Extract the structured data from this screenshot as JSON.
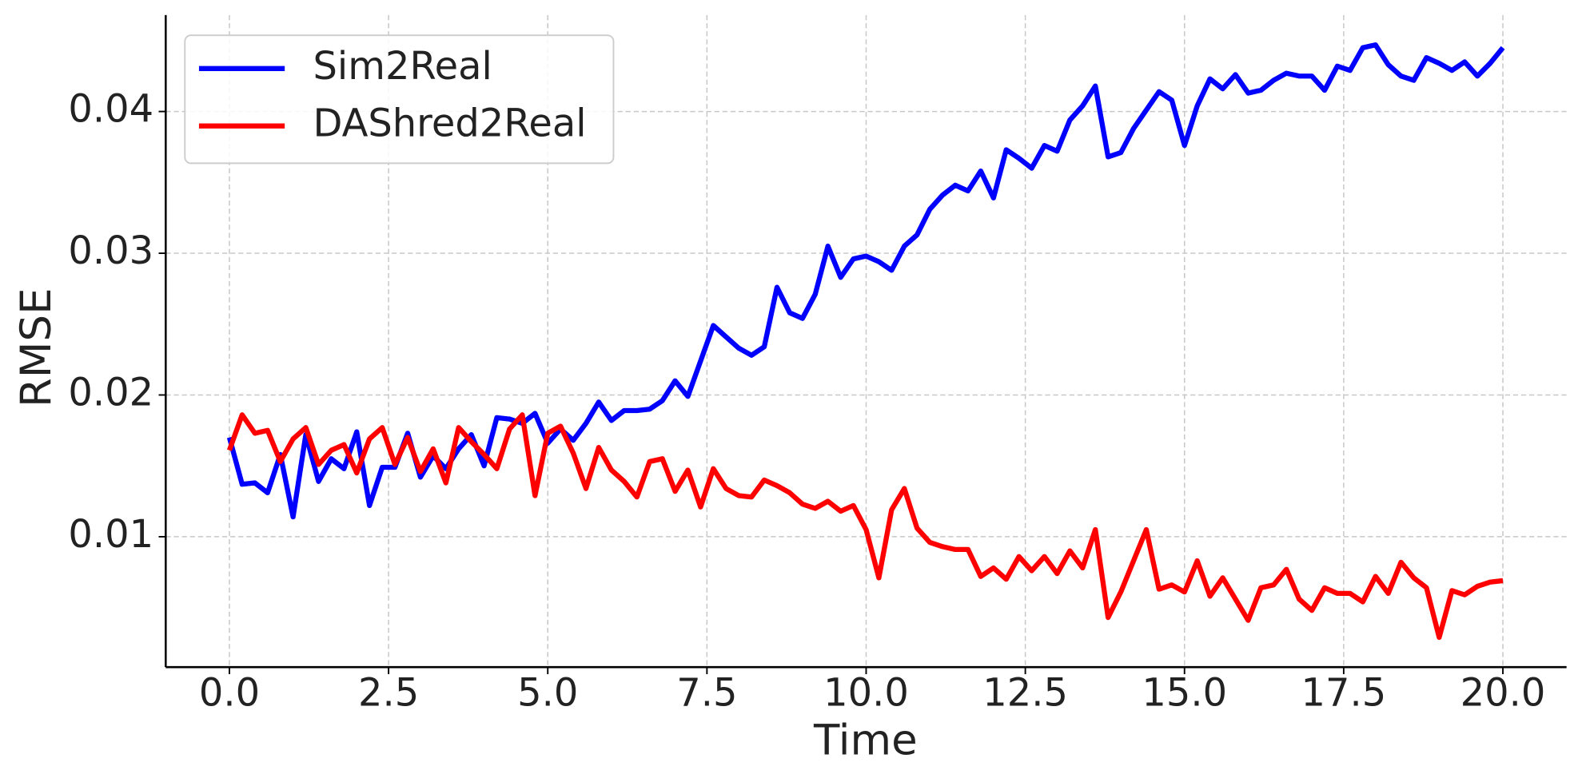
{
  "chart_data": {
    "type": "line",
    "xlabel": "Time",
    "ylabel": "RMSE",
    "x": [
      0,
      0.2,
      0.4,
      0.6,
      0.8,
      1,
      1.2,
      1.4,
      1.6,
      1.8,
      2,
      2.2,
      2.4,
      2.6,
      2.8,
      3,
      3.2,
      3.4,
      3.6,
      3.8,
      4,
      4.2,
      4.4,
      4.6,
      4.8,
      5,
      5.2,
      5.4,
      5.6,
      5.8,
      6,
      6.2,
      6.4,
      6.6,
      6.8,
      7,
      7.2,
      7.4,
      7.6,
      7.8,
      8,
      8.2,
      8.4,
      8.6,
      8.8,
      9,
      9.2,
      9.4,
      9.6,
      9.8,
      10,
      10.2,
      10.4,
      10.6,
      10.8,
      11,
      11.2,
      11.4,
      11.6,
      11.8,
      12,
      12.2,
      12.4,
      12.6,
      12.8,
      13,
      13.2,
      13.4,
      13.6,
      13.8,
      14,
      14.2,
      14.4,
      14.6,
      14.8,
      15,
      15.2,
      15.4,
      15.6,
      15.8,
      16,
      16.2,
      16.4,
      16.6,
      16.8,
      17,
      17.2,
      17.4,
      17.6,
      17.8,
      18,
      18.2,
      18.4,
      18.6,
      18.8,
      19,
      19.2,
      19.4,
      19.6,
      19.8,
      20
    ],
    "series": [
      {
        "name": "Sim2Real",
        "color": "#0000ff",
        "values": [
          0.017,
          0.0137,
          0.0138,
          0.0131,
          0.0158,
          0.0114,
          0.0172,
          0.0139,
          0.0155,
          0.0148,
          0.0174,
          0.0122,
          0.0149,
          0.0149,
          0.0173,
          0.0142,
          0.0157,
          0.0148,
          0.0162,
          0.0172,
          0.015,
          0.0184,
          0.0183,
          0.018,
          0.0187,
          0.0166,
          0.0176,
          0.0168,
          0.018,
          0.0195,
          0.0182,
          0.0189,
          0.0189,
          0.019,
          0.0196,
          0.021,
          0.0199,
          0.0224,
          0.0249,
          0.0241,
          0.0233,
          0.0228,
          0.0234,
          0.0276,
          0.0258,
          0.0254,
          0.0271,
          0.0305,
          0.0283,
          0.0296,
          0.0298,
          0.0294,
          0.0288,
          0.0305,
          0.0313,
          0.0331,
          0.0341,
          0.0348,
          0.0344,
          0.0358,
          0.0339,
          0.0373,
          0.0367,
          0.036,
          0.0376,
          0.0372,
          0.0394,
          0.0404,
          0.0418,
          0.0368,
          0.0371,
          0.0388,
          0.0401,
          0.0414,
          0.0408,
          0.0376,
          0.0404,
          0.0423,
          0.0416,
          0.0426,
          0.0413,
          0.0415,
          0.0422,
          0.0427,
          0.0425,
          0.0425,
          0.0415,
          0.0432,
          0.0429,
          0.0445,
          0.0447,
          0.0433,
          0.0425,
          0.0422,
          0.0438,
          0.0434,
          0.0429,
          0.0435,
          0.0425,
          0.0434,
          0.0445
        ]
      },
      {
        "name": "DAShred2Real",
        "color": "#ff0000",
        "values": [
          0.0161,
          0.0186,
          0.0173,
          0.0175,
          0.0153,
          0.0169,
          0.0177,
          0.0151,
          0.0161,
          0.0165,
          0.0145,
          0.0169,
          0.0177,
          0.0151,
          0.017,
          0.0146,
          0.0162,
          0.0138,
          0.0177,
          0.0167,
          0.0158,
          0.0148,
          0.0176,
          0.0186,
          0.0129,
          0.0173,
          0.0178,
          0.0159,
          0.0134,
          0.0163,
          0.0147,
          0.0139,
          0.0128,
          0.0153,
          0.0155,
          0.0132,
          0.0147,
          0.0121,
          0.0148,
          0.0134,
          0.0129,
          0.0128,
          0.014,
          0.0136,
          0.0131,
          0.0123,
          0.012,
          0.0125,
          0.0118,
          0.0122,
          0.0105,
          0.0071,
          0.0119,
          0.0134,
          0.0106,
          0.0096,
          0.0093,
          0.0091,
          0.0091,
          0.0072,
          0.0078,
          0.007,
          0.0086,
          0.0076,
          0.0086,
          0.0074,
          0.009,
          0.0078,
          0.0105,
          0.0043,
          0.0061,
          0.0083,
          0.0105,
          0.0063,
          0.0066,
          0.0061,
          0.0083,
          0.0058,
          0.0071,
          0.0056,
          0.0041,
          0.0064,
          0.0066,
          0.0077,
          0.0056,
          0.0048,
          0.0064,
          0.006,
          0.006,
          0.0054,
          0.0072,
          0.006,
          0.0082,
          0.0071,
          0.0064,
          0.0029,
          0.0062,
          0.0059,
          0.0065,
          0.0068,
          0.0069
        ]
      }
    ],
    "xlim": [
      -1,
      21
    ],
    "ylim": [
      0.0008,
      0.0468
    ],
    "xticks": [
      {
        "value": 0,
        "label": "0.0"
      },
      2.5,
      {
        "value": 5,
        "label": "5.0"
      },
      7.5,
      {
        "value": 10,
        "label": "10.0"
      },
      12.5,
      {
        "value": 15,
        "label": "15.0"
      },
      17.5,
      {
        "value": 20,
        "label": "20.0"
      }
    ],
    "yticks": [
      0.01,
      0.02,
      0.03,
      0.04
    ],
    "grid": true,
    "legend": "upper left"
  }
}
